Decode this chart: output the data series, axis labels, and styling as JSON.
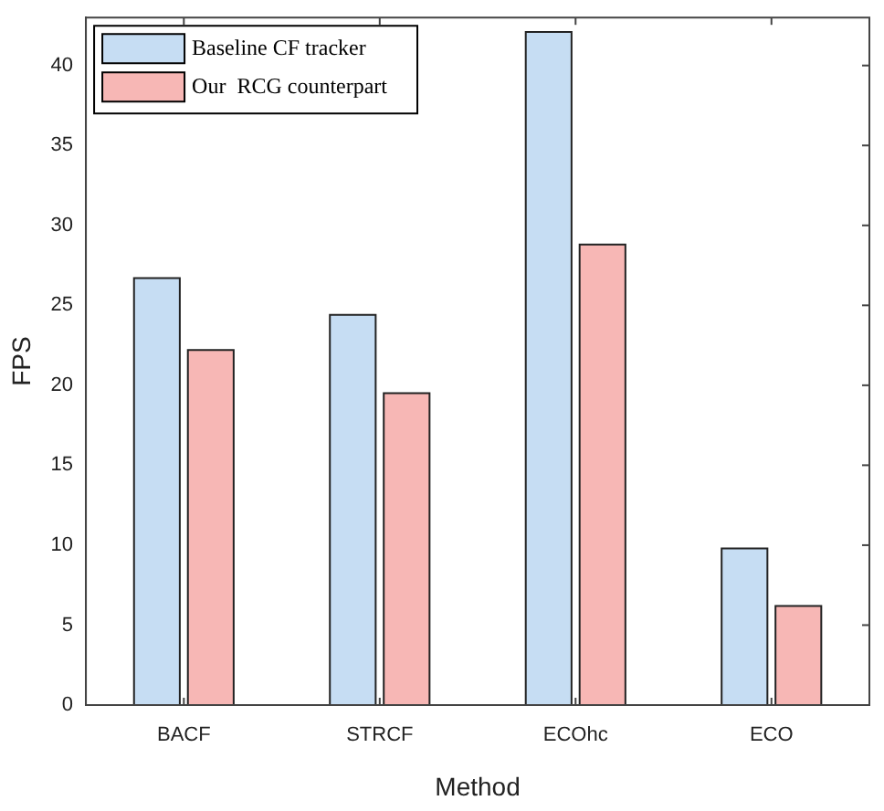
{
  "chart_data": {
    "type": "bar",
    "xlabel": "Method",
    "ylabel": "FPS",
    "categories": [
      "BACF",
      "STRCF",
      "ECOhc",
      "ECO"
    ],
    "series": [
      {
        "name": "Baseline CF tracker",
        "color": "#c6ddf3",
        "values": [
          26.7,
          24.4,
          42.1,
          9.8
        ]
      },
      {
        "name": "Our  RCG counterpart",
        "color": "#f7b7b5",
        "values": [
          22.2,
          19.5,
          28.8,
          6.2
        ]
      }
    ],
    "ylim": [
      0,
      43
    ],
    "yticks": [
      0,
      5,
      10,
      15,
      20,
      25,
      30,
      35,
      40
    ],
    "grid": false,
    "legend": "top left"
  }
}
